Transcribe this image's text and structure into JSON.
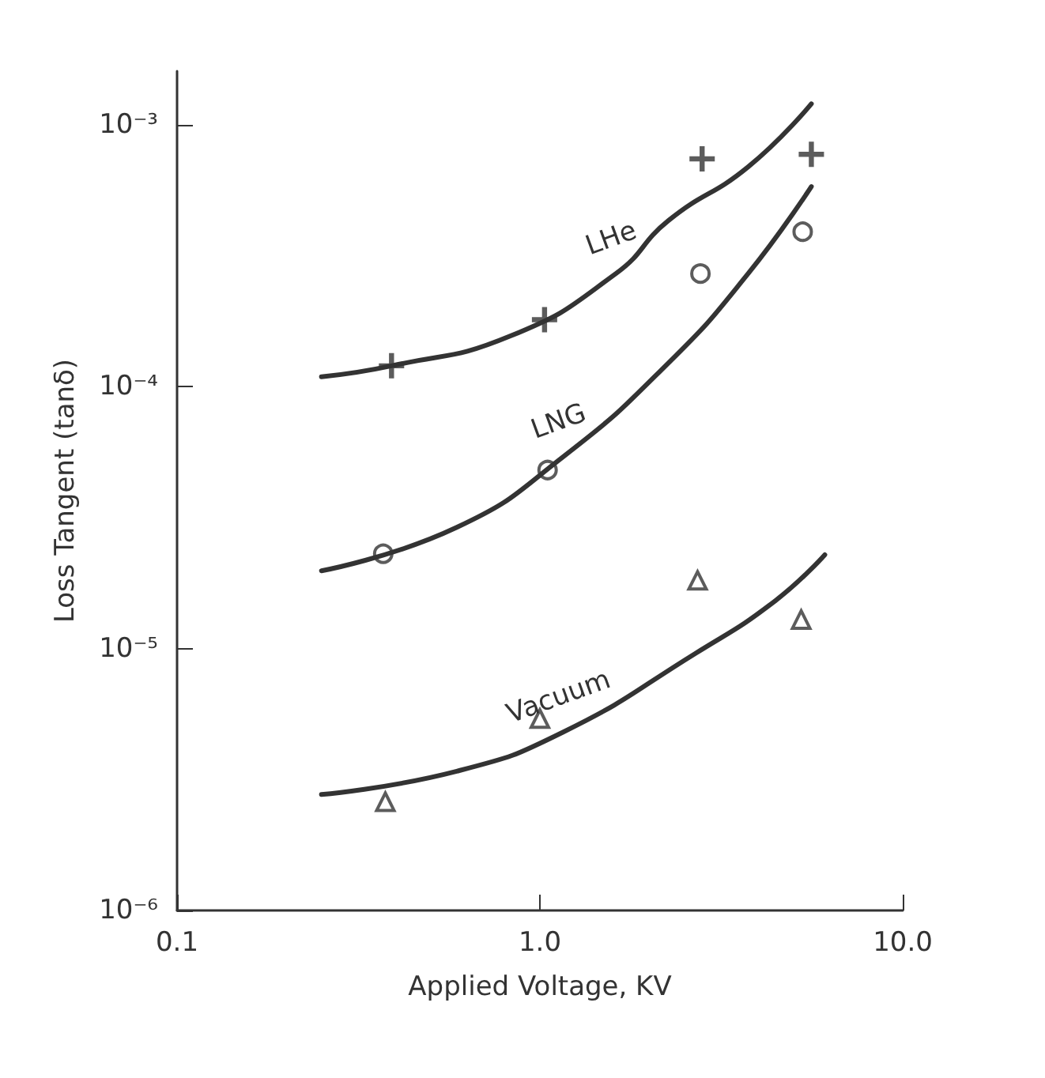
{
  "chart_data": {
    "type": "line",
    "xlabel": "Applied Voltage, KV",
    "ylabel": "Loss Tangent (tanδ)",
    "log": "xy",
    "grid": false,
    "legend": false,
    "xlim": [
      0.1,
      10
    ],
    "xticks": [
      0.1,
      {
        "value": 1,
        "label": "1.0"
      },
      {
        "value": 10,
        "label": "10.0"
      }
    ],
    "ylim": [
      1e-06,
      0.0016
    ],
    "yticks": [
      {
        "value": 1e-06,
        "label": "10⁻⁶"
      },
      {
        "value": 1e-05,
        "label": "10⁻⁵"
      },
      {
        "value": 0.0001,
        "label": "10⁻⁴"
      },
      {
        "value": 0.001,
        "label": "10⁻³"
      }
    ],
    "series": [
      {
        "name": "LHe",
        "marker": "none",
        "line_style": "solid",
        "color": "#333333",
        "x": [
          0.25,
          0.39,
          0.83,
          1.62,
          2.26,
          3.75,
          5.6
        ],
        "values": [
          0.000109,
          0.00012,
          0.000156,
          0.00027,
          0.00043,
          0.00069,
          0.0012
        ]
      },
      {
        "name": "LNG",
        "marker": "none",
        "line_style": "solid",
        "color": "#333333",
        "x": [
          0.25,
          0.59,
          1.16,
          2.26,
          3.75,
          5.6
        ],
        "values": [
          1.98e-05,
          2.9e-05,
          5.4e-05,
          0.000123,
          0.00027,
          0.00058
        ]
      },
      {
        "name": "Vacuum",
        "marker": "none",
        "line_style": "solid",
        "color": "#333333",
        "x": [
          0.25,
          0.59,
          1.16,
          2.69,
          4.45,
          6.1
        ],
        "values": [
          2.77e-06,
          3.4e-06,
          4.8e-06,
          9.6e-06,
          1.52e-05,
          2.28e-05
        ]
      },
      {
        "type": "scatter",
        "marker": "cross",
        "color": "#333333",
        "x": [
          0.39,
          1.03,
          2.8,
          5.6
        ],
        "values": [
          0.00012,
          0.00018,
          0.00074,
          0.00077
        ]
      },
      {
        "type": "scatter",
        "marker": "circle",
        "color": "#333333",
        "x": [
          0.37,
          1.05,
          2.77,
          5.3
        ],
        "values": [
          2.3e-05,
          4.8e-05,
          0.00027,
          0.00039
        ]
      },
      {
        "type": "scatter",
        "marker": "triangle",
        "color": "#333333",
        "x": [
          0.375,
          1.0,
          2.72,
          5.25
        ],
        "values": [
          2.6e-06,
          5.4e-06,
          1.82e-05,
          1.29e-05
        ]
      }
    ]
  }
}
